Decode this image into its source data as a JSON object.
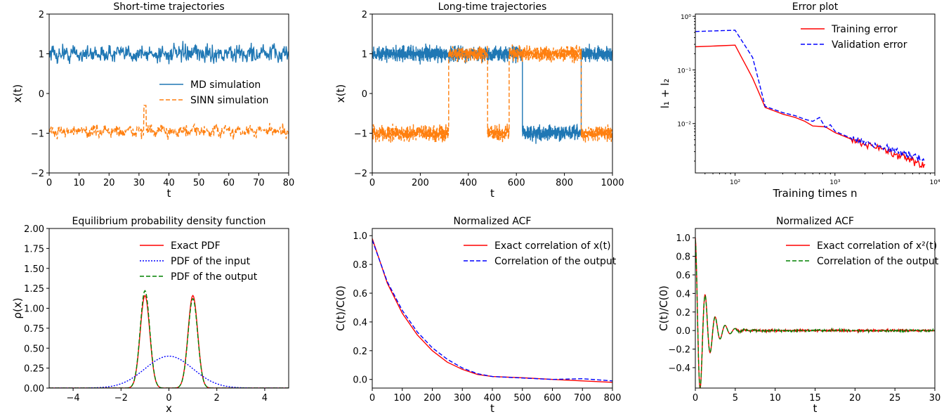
{
  "chart_data": [
    {
      "id": "p1",
      "type": "line",
      "title": "Short-time trajectories",
      "xlabel": "t",
      "ylabel": "x(t)",
      "xlim": [
        0,
        80
      ],
      "ylim": [
        -2,
        2
      ],
      "xticks": [
        "0",
        "10",
        "20",
        "30",
        "40",
        "50",
        "60",
        "70",
        "80"
      ],
      "yticks": [
        "−2",
        "−1",
        "0",
        "1",
        "2"
      ],
      "legend_position": "center-right",
      "series": [
        {
          "name": "MD simulation",
          "color": "#1f77b4",
          "dash": "solid",
          "mean": 1.0,
          "amplitude": 0.15,
          "description": "fast oscillation around 1, range about 0.4 to 1.4"
        },
        {
          "name": "SINN simulation",
          "color": "#ff7f0e",
          "dash": "dashed",
          "mean": -0.95,
          "amplitude": 0.1,
          "description": "fast oscillation around -0.95, spike to about -0.3 near t=32"
        }
      ]
    },
    {
      "id": "p2",
      "type": "line",
      "title": "Long-time trajectories",
      "xlabel": "t",
      "ylabel": "x(t)",
      "xlim": [
        0,
        1000
      ],
      "ylim": [
        -2,
        2
      ],
      "xticks": [
        "0",
        "200",
        "400",
        "600",
        "800",
        "1000"
      ],
      "yticks": [
        "−2",
        "−1",
        "0",
        "1",
        "2"
      ],
      "series": [
        {
          "name": "MD simulation",
          "color": "#1f77b4",
          "dash": "solid",
          "segments": [
            [
              0,
              625,
              1.0
            ],
            [
              625,
              870,
              -1.0
            ],
            [
              870,
              1000,
              1.0
            ]
          ]
        },
        {
          "name": "SINN simulation",
          "color": "#ff7f0e",
          "dash": "dashed",
          "segments": [
            [
              0,
              318,
              -1.0
            ],
            [
              318,
              480,
              1.0
            ],
            [
              480,
              570,
              -1.0
            ],
            [
              570,
              870,
              1.0
            ],
            [
              870,
              1000,
              -1.0
            ]
          ]
        }
      ]
    },
    {
      "id": "p3",
      "type": "line",
      "title": "Error plot",
      "xlabel": "Training times n",
      "ylabel": "l₁ + l₂",
      "xscale": "log",
      "yscale": "log",
      "xlim": [
        40,
        10000
      ],
      "ylim": [
        0.0012,
        1.1
      ],
      "xticks": [
        {
          "value": 100,
          "label": "10²"
        },
        {
          "value": 1000,
          "label": "10³"
        },
        {
          "value": 10000,
          "label": "10⁴"
        }
      ],
      "yticks": [
        {
          "value": 0.01,
          "label": "10⁻²"
        },
        {
          "value": 0.1,
          "label": "10⁻¹"
        },
        {
          "value": 1,
          "label": "10⁰"
        }
      ],
      "legend_position": "top-right",
      "series": [
        {
          "name": "Training error",
          "color": "#ff0000",
          "dash": "solid",
          "points": [
            [
              40,
              0.27
            ],
            [
              100,
              0.29
            ],
            [
              150,
              0.07
            ],
            [
              200,
              0.02
            ],
            [
              300,
              0.015
            ],
            [
              400,
              0.013
            ],
            [
              500,
              0.011
            ],
            [
              600,
              0.009
            ],
            [
              800,
              0.0087
            ],
            [
              1000,
              0.0068
            ],
            [
              1500,
              0.005
            ],
            [
              2000,
              0.0042
            ],
            [
              3000,
              0.0033
            ],
            [
              4000,
              0.0027
            ],
            [
              5000,
              0.0023
            ],
            [
              6000,
              0.002
            ],
            [
              8000,
              0.0017
            ]
          ]
        },
        {
          "name": "Validation error",
          "color": "#0000ff",
          "dash": "dashed",
          "points": [
            [
              40,
              0.52
            ],
            [
              100,
              0.55
            ],
            [
              150,
              0.17
            ],
            [
              200,
              0.021
            ],
            [
              300,
              0.016
            ],
            [
              400,
              0.014
            ],
            [
              500,
              0.012
            ],
            [
              600,
              0.011
            ],
            [
              700,
              0.013
            ],
            [
              800,
              0.0085
            ],
            [
              900,
              0.0095
            ],
            [
              1000,
              0.0072
            ],
            [
              1500,
              0.0052
            ],
            [
              2000,
              0.0045
            ],
            [
              3000,
              0.0036
            ],
            [
              4000,
              0.0031
            ],
            [
              5000,
              0.0027
            ],
            [
              6000,
              0.0025
            ],
            [
              8000,
              0.002
            ]
          ]
        }
      ]
    },
    {
      "id": "p4",
      "type": "line",
      "title": "Equilibrium probability density function",
      "xlabel": "x",
      "ylabel": "ρ(x)",
      "xlim": [
        -5,
        5
      ],
      "ylim": [
        0,
        2
      ],
      "xticks": [
        "−4",
        "−2",
        "0",
        "2",
        "4"
      ],
      "yticks": [
        "0.00",
        "0.25",
        "0.50",
        "0.75",
        "1.00",
        "1.25",
        "1.50",
        "1.75",
        "2.00"
      ],
      "legend_position": "top-right",
      "series": [
        {
          "name": "Exact PDF",
          "color": "#ff0000",
          "dash": "solid",
          "peaks": [
            [
              -1,
              1.16
            ],
            [
              1,
              1.16
            ]
          ]
        },
        {
          "name": "PDF of the input",
          "color": "#0000ff",
          "dash": "dotted",
          "peaks": [
            [
              0,
              0.4
            ]
          ]
        },
        {
          "name": "PDF of the output",
          "color": "#008000",
          "dash": "dashed",
          "peaks": [
            [
              -1,
              1.22
            ],
            [
              1,
              1.12
            ]
          ]
        }
      ]
    },
    {
      "id": "p5",
      "type": "line",
      "title": "Normalized ACF",
      "xlabel": "t",
      "ylabel": "C(t)/C(0)",
      "xlim": [
        0,
        800
      ],
      "ylim": [
        -0.06,
        1.05
      ],
      "xticks": [
        "0",
        "100",
        "200",
        "300",
        "400",
        "500",
        "600",
        "700",
        "800"
      ],
      "yticks": [
        "0.0",
        "0.2",
        "0.4",
        "0.6",
        "0.8",
        "1.0"
      ],
      "legend_position": "top-right",
      "series": [
        {
          "name": "Exact correlation of x(t)",
          "color": "#ff0000",
          "dash": "solid",
          "points": [
            [
              0,
              0.98
            ],
            [
              50,
              0.67
            ],
            [
              100,
              0.46
            ],
            [
              150,
              0.31
            ],
            [
              200,
              0.2
            ],
            [
              250,
              0.12
            ],
            [
              300,
              0.07
            ],
            [
              350,
              0.035
            ],
            [
              400,
              0.02
            ],
            [
              500,
              0.012
            ],
            [
              600,
              0.0
            ],
            [
              700,
              -0.01
            ],
            [
              800,
              -0.02
            ]
          ]
        },
        {
          "name": "Correlation of the output",
          "color": "#0000ff",
          "dash": "dashed",
          "points": [
            [
              0,
              0.97
            ],
            [
              50,
              0.68
            ],
            [
              100,
              0.48
            ],
            [
              150,
              0.33
            ],
            [
              200,
              0.22
            ],
            [
              250,
              0.14
            ],
            [
              300,
              0.08
            ],
            [
              350,
              0.04
            ],
            [
              400,
              0.02
            ],
            [
              500,
              0.01
            ],
            [
              600,
              0.0
            ],
            [
              700,
              0.005
            ],
            [
              800,
              -0.01
            ]
          ]
        }
      ]
    },
    {
      "id": "p6",
      "type": "line",
      "title": "Normalized ACF",
      "xlabel": "t",
      "ylabel": "C(t)/C(0)",
      "xlim": [
        0,
        30
      ],
      "ylim": [
        -0.62,
        1.1
      ],
      "xticks": [
        "0",
        "5",
        "10",
        "15",
        "20",
        "25",
        "30"
      ],
      "yticks": [
        "−0.4",
        "−0.2",
        "0.0",
        "0.2",
        "0.4",
        "0.6",
        "0.8",
        "1.0"
      ],
      "legend_position": "top-right",
      "series": [
        {
          "name": "Exact correlation of x²(t)",
          "color": "#ff0000",
          "dash": "solid",
          "min": -0.5,
          "second_peak": 0.34
        },
        {
          "name": "Correlation of the output",
          "color": "#008000",
          "dash": "dashed",
          "min": -0.48,
          "second_peak": 0.34
        }
      ]
    }
  ]
}
